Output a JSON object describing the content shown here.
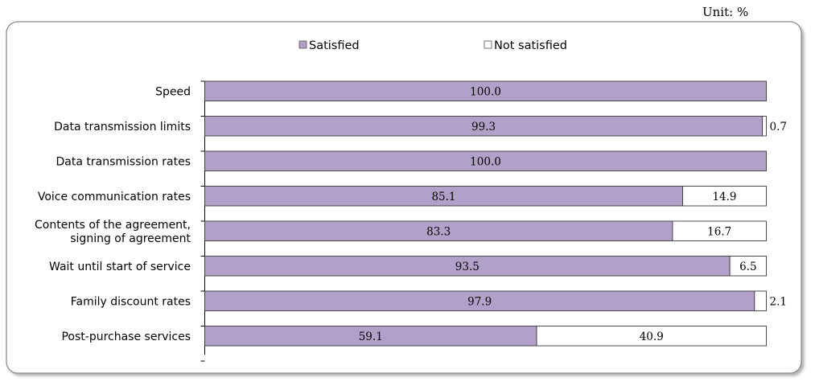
{
  "unit_label": "Unit: %",
  "chart_data": {
    "type": "bar",
    "orientation": "horizontal",
    "stacked": true,
    "xlim": [
      0,
      100
    ],
    "legend_position": "top",
    "categories": [
      [
        "Speed"
      ],
      [
        "Data transmission limits"
      ],
      [
        "Data transmission rates"
      ],
      [
        "Voice communication rates"
      ],
      [
        "Contents of the agreement,",
        "signing of agreement"
      ],
      [
        "Wait until start of service"
      ],
      [
        "Family discount rates"
      ],
      [
        "Post-purchase services"
      ]
    ],
    "series": [
      {
        "name": "Satisfied",
        "color": "#b1a0c7",
        "values": [
          100.0,
          99.3,
          100.0,
          85.1,
          83.3,
          93.5,
          97.9,
          59.1
        ],
        "labels": [
          "100.0",
          "99.3",
          "100.0",
          "85.1",
          "83.3",
          "93.5",
          "97.9",
          "59.1"
        ]
      },
      {
        "name": "Not satisfied",
        "color": "#ffffff",
        "values": [
          0,
          0.7,
          0,
          14.9,
          16.7,
          6.5,
          2.1,
          40.9
        ],
        "labels": [
          "",
          "0.7",
          "",
          "14.9",
          "16.7",
          "6.5",
          "2.1",
          "40.9"
        ]
      }
    ]
  }
}
